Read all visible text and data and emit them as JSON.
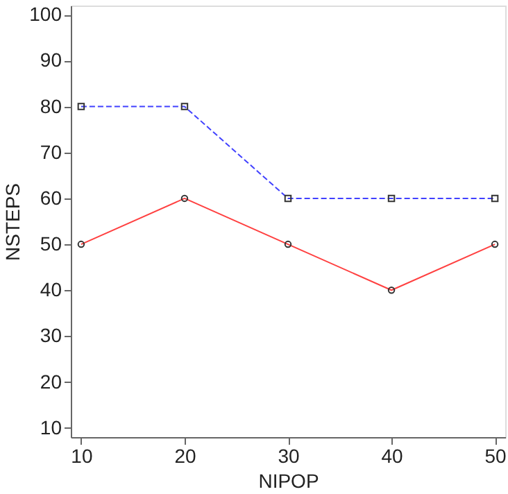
{
  "chart_data": {
    "type": "line",
    "xlabel": "NIPOP",
    "ylabel": "NSTEPS",
    "x": [
      10,
      20,
      30,
      40,
      50
    ],
    "series": [
      {
        "color": "#4040ff",
        "values": [
          80,
          80,
          60,
          60,
          60
        ],
        "marker": "square",
        "line_style": "dashed"
      },
      {
        "color": "#ff4040",
        "values": [
          50,
          60,
          50,
          40,
          50
        ],
        "marker": "circle",
        "line_style": "solid"
      }
    ],
    "xlim": [
      9,
      51
    ],
    "ylim": [
      8,
      102
    ],
    "xticks": [
      10,
      20,
      30,
      40,
      50
    ],
    "yticks": [
      10,
      20,
      30,
      40,
      50,
      60,
      70,
      80,
      90,
      100
    ],
    "grid": false
  }
}
